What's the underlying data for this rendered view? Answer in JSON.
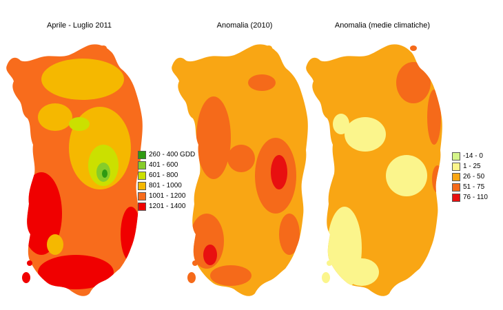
{
  "panels": [
    {
      "title": "Aprile - Luglio 2011"
    },
    {
      "title": "Anomalia (2010)"
    },
    {
      "title": "Anomalia (medie climatiche)"
    }
  ],
  "legend_gdd": [
    {
      "label": "260 - 400 GDD",
      "color": "#2e9a12"
    },
    {
      "label": "401 - 600",
      "color": "#86cc2a"
    },
    {
      "label": "601 - 800",
      "color": "#cbe000"
    },
    {
      "label": "801 - 1000",
      "color": "#f5b800"
    },
    {
      "label": "1001 - 1200",
      "color": "#f86c1c"
    },
    {
      "label": "1201 - 1400",
      "color": "#f00000"
    }
  ],
  "legend_anomaly": [
    {
      "label": "-14 - 0",
      "color": "#d5f58a"
    },
    {
      "label": "1 - 25",
      "color": "#fbf58c"
    },
    {
      "label": "26 - 50",
      "color": "#f9a614"
    },
    {
      "label": "51 - 75",
      "color": "#f56a1a"
    },
    {
      "label": "76 - 110",
      "color": "#e81010"
    }
  ]
}
